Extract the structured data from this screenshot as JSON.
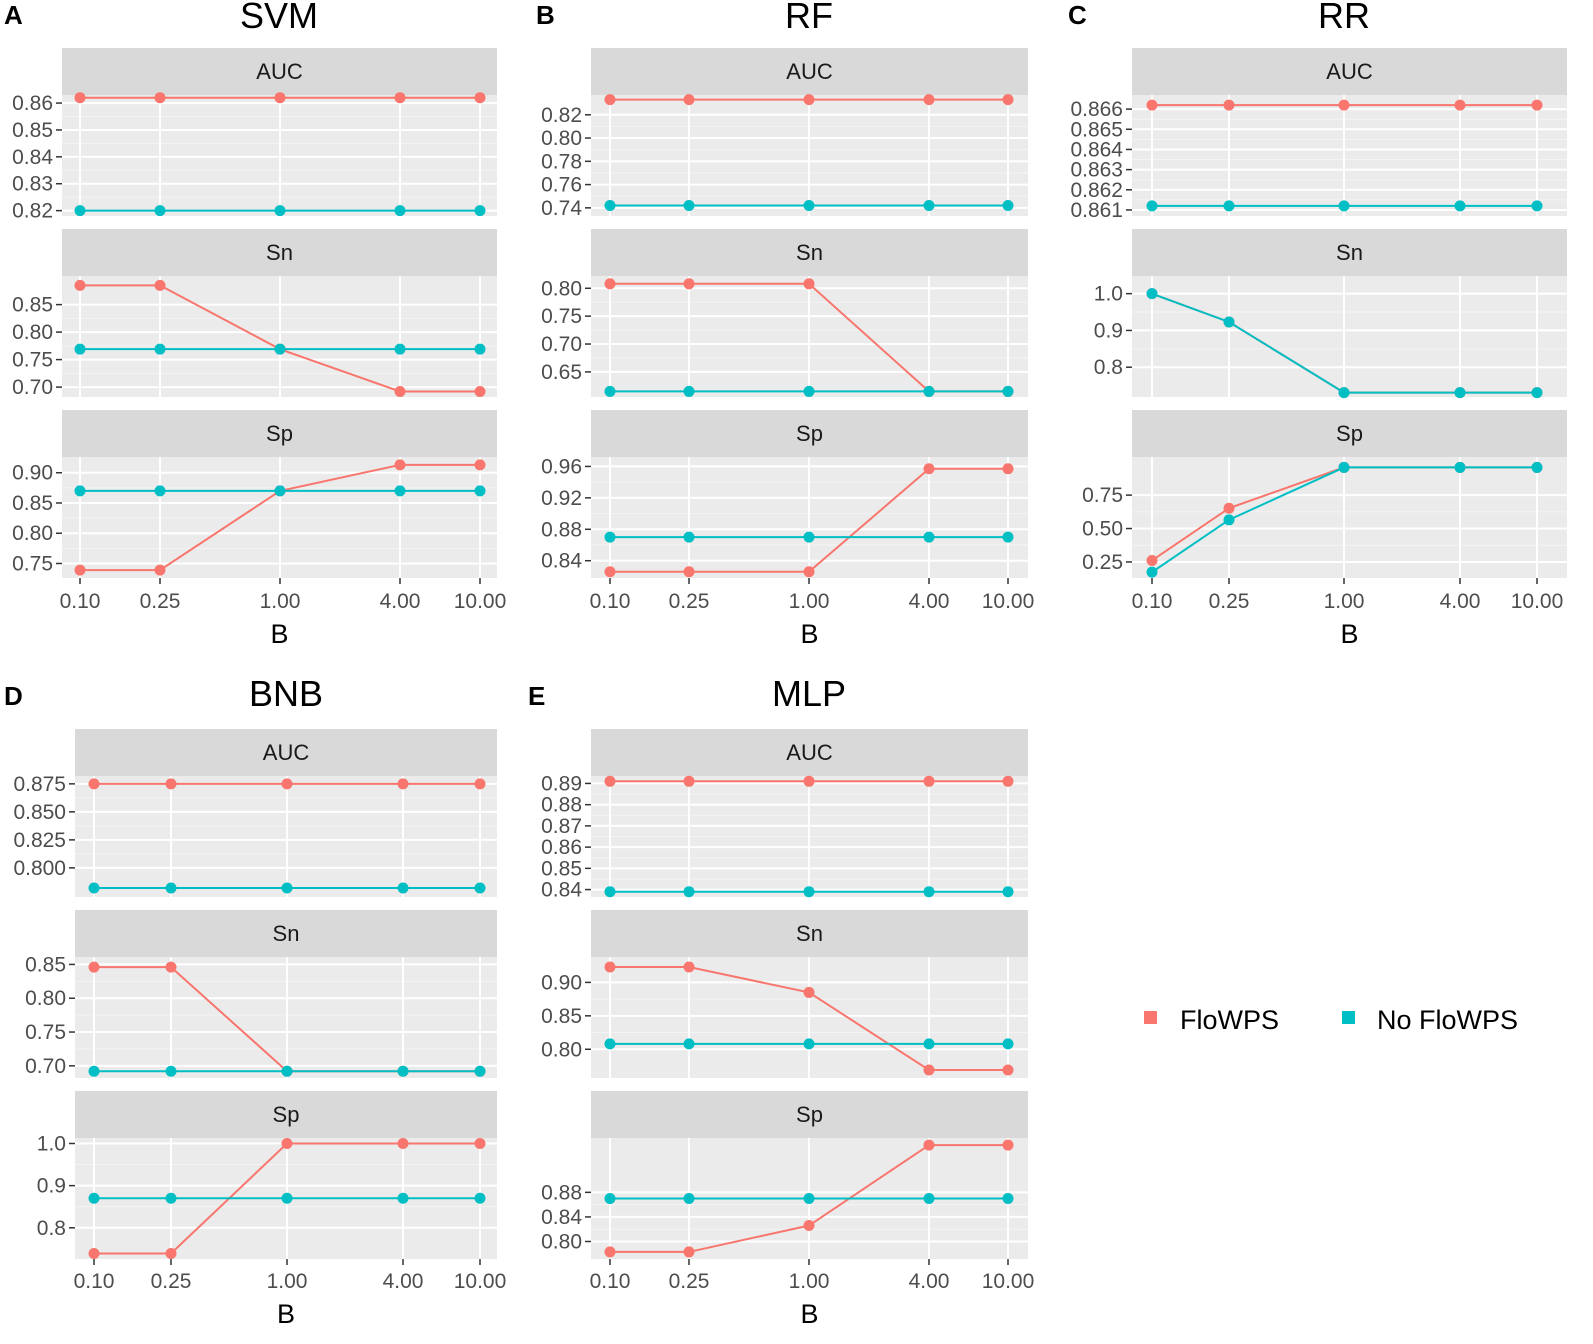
{
  "colors": {
    "flowps": "#F8766D",
    "no_flowps": "#00BFC4"
  },
  "legend": {
    "items": [
      {
        "label": "FloWPS",
        "color": "#F8766D"
      },
      {
        "label": "No FloWPS",
        "color": "#00BFC4"
      }
    ]
  },
  "chart_data": [
    {
      "type": "line",
      "letter": "A",
      "title": "SVM",
      "xlabel": "B",
      "categories": [
        "0.10",
        "0.25",
        "1.00",
        "4.00",
        "10.00"
      ],
      "facets": [
        {
          "metric": "AUC",
          "ylim": [
            0.818,
            0.863
          ],
          "yticks": [
            0.82,
            0.83,
            0.84,
            0.85,
            0.86
          ],
          "tick_labels": [
            "0.82",
            "0.83",
            "0.84",
            "0.85",
            "0.86"
          ],
          "series": [
            {
              "name": "FloWPS",
              "values": [
                0.862,
                0.862,
                0.862,
                0.862,
                0.862
              ]
            },
            {
              "name": "No FloWPS",
              "values": [
                0.82,
                0.82,
                0.82,
                0.82,
                0.82
              ]
            }
          ]
        },
        {
          "metric": "Sn",
          "ylim": [
            0.682,
            0.902
          ],
          "yticks": [
            0.7,
            0.75,
            0.8,
            0.85
          ],
          "tick_labels": [
            "0.70",
            "0.75",
            "0.80",
            "0.85"
          ],
          "series": [
            {
              "name": "FloWPS",
              "values": [
                0.885,
                0.885,
                0.769,
                0.692,
                0.692
              ]
            },
            {
              "name": "No FloWPS",
              "values": [
                0.769,
                0.769,
                0.769,
                0.769,
                0.769
              ]
            }
          ]
        },
        {
          "metric": "Sp",
          "ylim": [
            0.726,
            0.926
          ],
          "yticks": [
            0.75,
            0.8,
            0.85,
            0.9
          ],
          "tick_labels": [
            "0.75",
            "0.80",
            "0.85",
            "0.90"
          ],
          "series": [
            {
              "name": "FloWPS",
              "values": [
                0.739,
                0.739,
                0.87,
                0.913,
                0.913
              ]
            },
            {
              "name": "No FloWPS",
              "values": [
                0.87,
                0.87,
                0.87,
                0.87,
                0.87
              ]
            }
          ]
        }
      ]
    },
    {
      "type": "line",
      "letter": "B",
      "title": "RF",
      "xlabel": "B",
      "categories": [
        "0.10",
        "0.25",
        "1.00",
        "4.00",
        "10.00"
      ],
      "facets": [
        {
          "metric": "AUC",
          "ylim": [
            0.733,
            0.837
          ],
          "yticks": [
            0.74,
            0.76,
            0.78,
            0.8,
            0.82
          ],
          "tick_labels": [
            "0.74",
            "0.76",
            "0.78",
            "0.80",
            "0.82"
          ],
          "series": [
            {
              "name": "FloWPS",
              "values": [
                0.833,
                0.833,
                0.833,
                0.833,
                0.833
              ]
            },
            {
              "name": "No FloWPS",
              "values": [
                0.742,
                0.742,
                0.742,
                0.742,
                0.742
              ]
            }
          ]
        },
        {
          "metric": "Sn",
          "ylim": [
            0.605,
            0.822
          ],
          "yticks": [
            0.65,
            0.7,
            0.75,
            0.8
          ],
          "tick_labels": [
            "0.65",
            "0.70",
            "0.75",
            "0.80"
          ],
          "series": [
            {
              "name": "FloWPS",
              "values": [
                0.808,
                0.808,
                0.808,
                0.615,
                0.615
              ]
            },
            {
              "name": "No FloWPS",
              "values": [
                0.615,
                0.615,
                0.615,
                0.615,
                0.615
              ]
            }
          ]
        },
        {
          "metric": "Sp",
          "ylim": [
            0.818,
            0.972
          ],
          "yticks": [
            0.84,
            0.88,
            0.92,
            0.96
          ],
          "tick_labels": [
            "0.84",
            "0.88",
            "0.92",
            "0.96"
          ],
          "series": [
            {
              "name": "FloWPS",
              "values": [
                0.826,
                0.826,
                0.826,
                0.957,
                0.957
              ]
            },
            {
              "name": "No FloWPS",
              "values": [
                0.87,
                0.87,
                0.87,
                0.87,
                0.87
              ]
            }
          ]
        }
      ]
    },
    {
      "type": "line",
      "letter": "C",
      "title": "RR",
      "xlabel": "B",
      "categories": [
        "0.10",
        "0.25",
        "1.00",
        "4.00",
        "10.00"
      ],
      "facets": [
        {
          "metric": "AUC",
          "ylim": [
            0.8607,
            0.8667
          ],
          "yticks": [
            0.861,
            0.862,
            0.863,
            0.864,
            0.865,
            0.866
          ],
          "tick_labels": [
            "0.861",
            "0.862",
            "0.863",
            "0.864",
            "0.865",
            "0.866"
          ],
          "series": [
            {
              "name": "FloWPS",
              "values": [
                0.8662,
                0.8662,
                0.8662,
                0.8662,
                0.8662
              ]
            },
            {
              "name": "No FloWPS",
              "values": [
                0.8612,
                0.8612,
                0.8612,
                0.8612,
                0.8612
              ]
            }
          ]
        },
        {
          "metric": "Sn",
          "ylim": [
            0.719,
            1.048
          ],
          "yticks": [
            0.8,
            0.9,
            1.0
          ],
          "tick_labels": [
            "0.8",
            "0.9",
            "1.0"
          ],
          "series": [
            {
              "name": "FloWPS",
              "values": [
                1.0,
                0.923,
                0.731,
                0.731,
                0.731
              ]
            },
            {
              "name": "No FloWPS",
              "values": [
                1.0,
                0.923,
                0.731,
                0.731,
                0.731
              ]
            }
          ]
        },
        {
          "metric": "Sp",
          "ylim": [
            0.13,
            1.035
          ],
          "yticks": [
            0.25,
            0.5,
            0.75
          ],
          "tick_labels": [
            "0.25",
            "0.50",
            "0.75"
          ],
          "series": [
            {
              "name": "FloWPS",
              "values": [
                0.261,
                0.652,
                0.957,
                0.957,
                0.957
              ]
            },
            {
              "name": "No FloWPS",
              "values": [
                0.174,
                0.565,
                0.957,
                0.957,
                0.957
              ]
            }
          ]
        }
      ]
    },
    {
      "type": "line",
      "letter": "D",
      "title": "BNB",
      "xlabel": "B",
      "categories": [
        "0.10",
        "0.25",
        "1.00",
        "4.00",
        "10.00"
      ],
      "facets": [
        {
          "metric": "AUC",
          "ylim": [
            0.774,
            0.882
          ],
          "yticks": [
            0.8,
            0.825,
            0.85,
            0.875
          ],
          "tick_labels": [
            "0.800",
            "0.825",
            "0.850",
            "0.875"
          ],
          "series": [
            {
              "name": "FloWPS",
              "values": [
                0.875,
                0.875,
                0.875,
                0.875,
                0.875
              ]
            },
            {
              "name": "No FloWPS",
              "values": [
                0.782,
                0.782,
                0.782,
                0.782,
                0.782
              ]
            }
          ]
        },
        {
          "metric": "Sn",
          "ylim": [
            0.682,
            0.861
          ],
          "yticks": [
            0.7,
            0.75,
            0.8,
            0.85
          ],
          "tick_labels": [
            "0.70",
            "0.75",
            "0.80",
            "0.85"
          ],
          "series": [
            {
              "name": "FloWPS",
              "values": [
                0.846,
                0.846,
                0.692,
                0.692,
                0.692
              ]
            },
            {
              "name": "No FloWPS",
              "values": [
                0.692,
                0.692,
                0.692,
                0.692,
                0.692
              ]
            }
          ]
        },
        {
          "metric": "Sp",
          "ylim": [
            0.726,
            1.013
          ],
          "yticks": [
            0.8,
            0.9,
            1.0
          ],
          "tick_labels": [
            "0.8",
            "0.9",
            "1.0"
          ],
          "series": [
            {
              "name": "FloWPS",
              "values": [
                0.739,
                0.739,
                1.0,
                1.0,
                1.0
              ]
            },
            {
              "name": "No FloWPS",
              "values": [
                0.87,
                0.87,
                0.87,
                0.87,
                0.87
              ]
            }
          ]
        }
      ]
    },
    {
      "type": "line",
      "letter": "E",
      "title": "MLP",
      "xlabel": "B",
      "categories": [
        "0.10",
        "0.25",
        "1.00",
        "4.00",
        "10.00"
      ],
      "facets": [
        {
          "metric": "AUC",
          "ylim": [
            0.8365,
            0.8935
          ],
          "yticks": [
            0.84,
            0.85,
            0.86,
            0.87,
            0.88,
            0.89
          ],
          "tick_labels": [
            "0.84",
            "0.85",
            "0.86",
            "0.87",
            "0.88",
            "0.89"
          ],
          "series": [
            {
              "name": "FloWPS",
              "values": [
                0.891,
                0.891,
                0.891,
                0.891,
                0.891
              ]
            },
            {
              "name": "No FloWPS",
              "values": [
                0.839,
                0.839,
                0.839,
                0.839,
                0.839
              ]
            }
          ]
        },
        {
          "metric": "Sn",
          "ylim": [
            0.757,
            0.938
          ],
          "yticks": [
            0.8,
            0.85,
            0.9
          ],
          "tick_labels": [
            "0.80",
            "0.85",
            "0.90"
          ],
          "series": [
            {
              "name": "FloWPS",
              "values": [
                0.923,
                0.923,
                0.885,
                0.769,
                0.769
              ]
            },
            {
              "name": "No FloWPS",
              "values": [
                0.808,
                0.808,
                0.808,
                0.808,
                0.808
              ]
            }
          ]
        },
        {
          "metric": "Sp",
          "ylim": [
            0.7715,
            0.9685
          ],
          "yticks": [
            0.8,
            0.84,
            0.88
          ],
          "tick_labels": [
            "0.80",
            "0.84",
            "0.88"
          ],
          "series": [
            {
              "name": "FloWPS",
              "values": [
                0.783,
                0.783,
                0.826,
                0.957,
                0.957
              ]
            },
            {
              "name": "No FloWPS",
              "values": [
                0.87,
                0.87,
                0.87,
                0.87,
                0.87
              ]
            }
          ]
        }
      ]
    }
  ]
}
